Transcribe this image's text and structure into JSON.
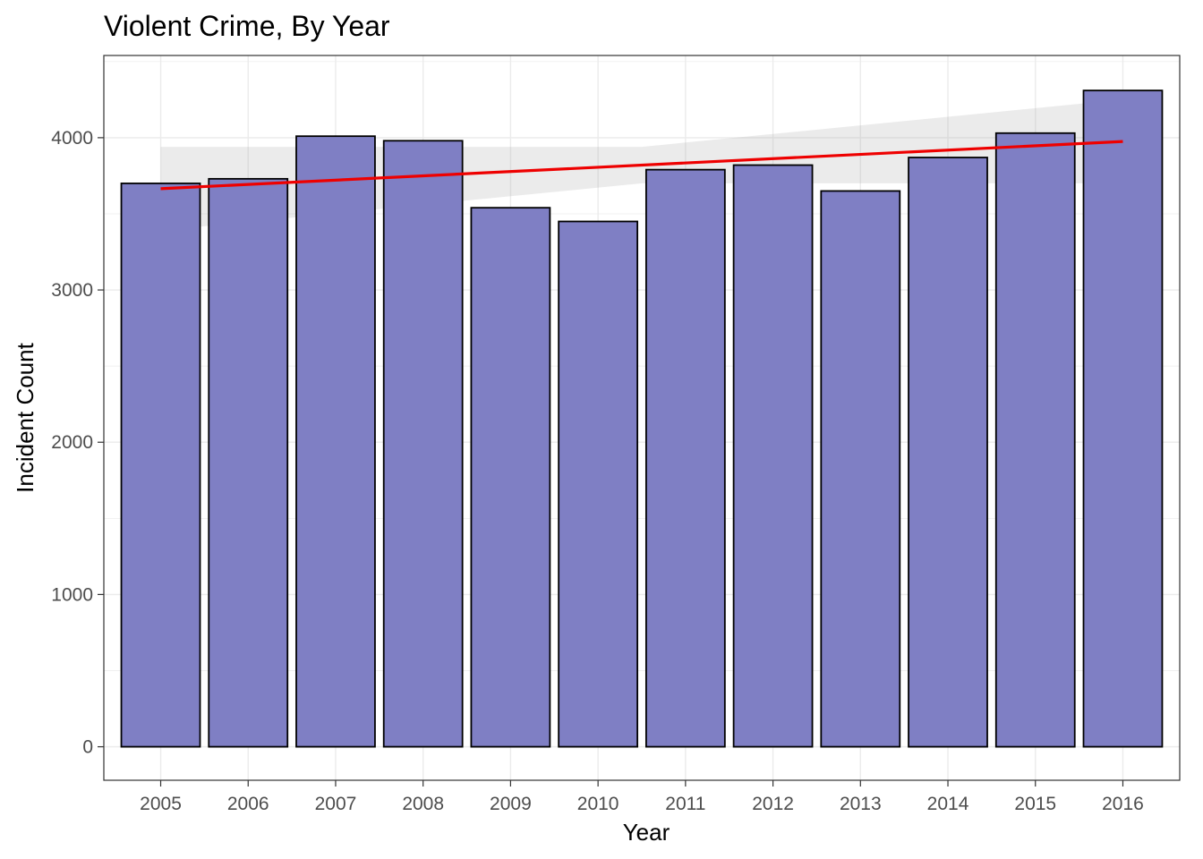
{
  "chart_data": {
    "type": "bar",
    "title": "Violent Crime, By Year",
    "xlabel": "Year",
    "ylabel": "Incident Count",
    "categories": [
      "2005",
      "2006",
      "2007",
      "2008",
      "2009",
      "2010",
      "2011",
      "2012",
      "2013",
      "2014",
      "2015",
      "2016"
    ],
    "values": [
      3700,
      3730,
      4010,
      3980,
      3540,
      3450,
      3790,
      3820,
      3650,
      3870,
      4030,
      4310
    ],
    "ylim": [
      -220,
      4540
    ],
    "yticks": [
      0,
      1000,
      2000,
      3000,
      4000
    ],
    "grid": true,
    "legend": "none",
    "trend_line": {
      "method": "linear",
      "start_value": 3665,
      "end_value": 3975,
      "confidence_band": {
        "start_lower": 3390,
        "start_upper": 3940,
        "end_lower": 3700,
        "end_upper": 4250
      }
    },
    "colors": {
      "bar_fill": "#7f7fc4",
      "bar_border": "#000000",
      "trend_line": "#ee0000",
      "confidence_band": "#999999",
      "grid": "#ebebeb",
      "panel_border": "#333333"
    }
  }
}
